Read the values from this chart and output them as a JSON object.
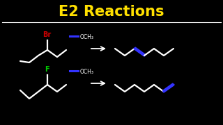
{
  "title": "E2 Reactions",
  "title_color": "#FFE000",
  "bg_color": "#000000",
  "br_label": "Br",
  "br_color": "#CC0000",
  "f_label": "F",
  "f_color": "#00CC00",
  "och3_label": "OCH₃",
  "och3_color": "#FFFFFF",
  "line_color": "#FFFFFF",
  "blue_color": "#3333FF",
  "arrow_color": "#FFFFFF",
  "title_fontsize": 15,
  "lw": 1.6,
  "separator_color": "#FFFFFF"
}
